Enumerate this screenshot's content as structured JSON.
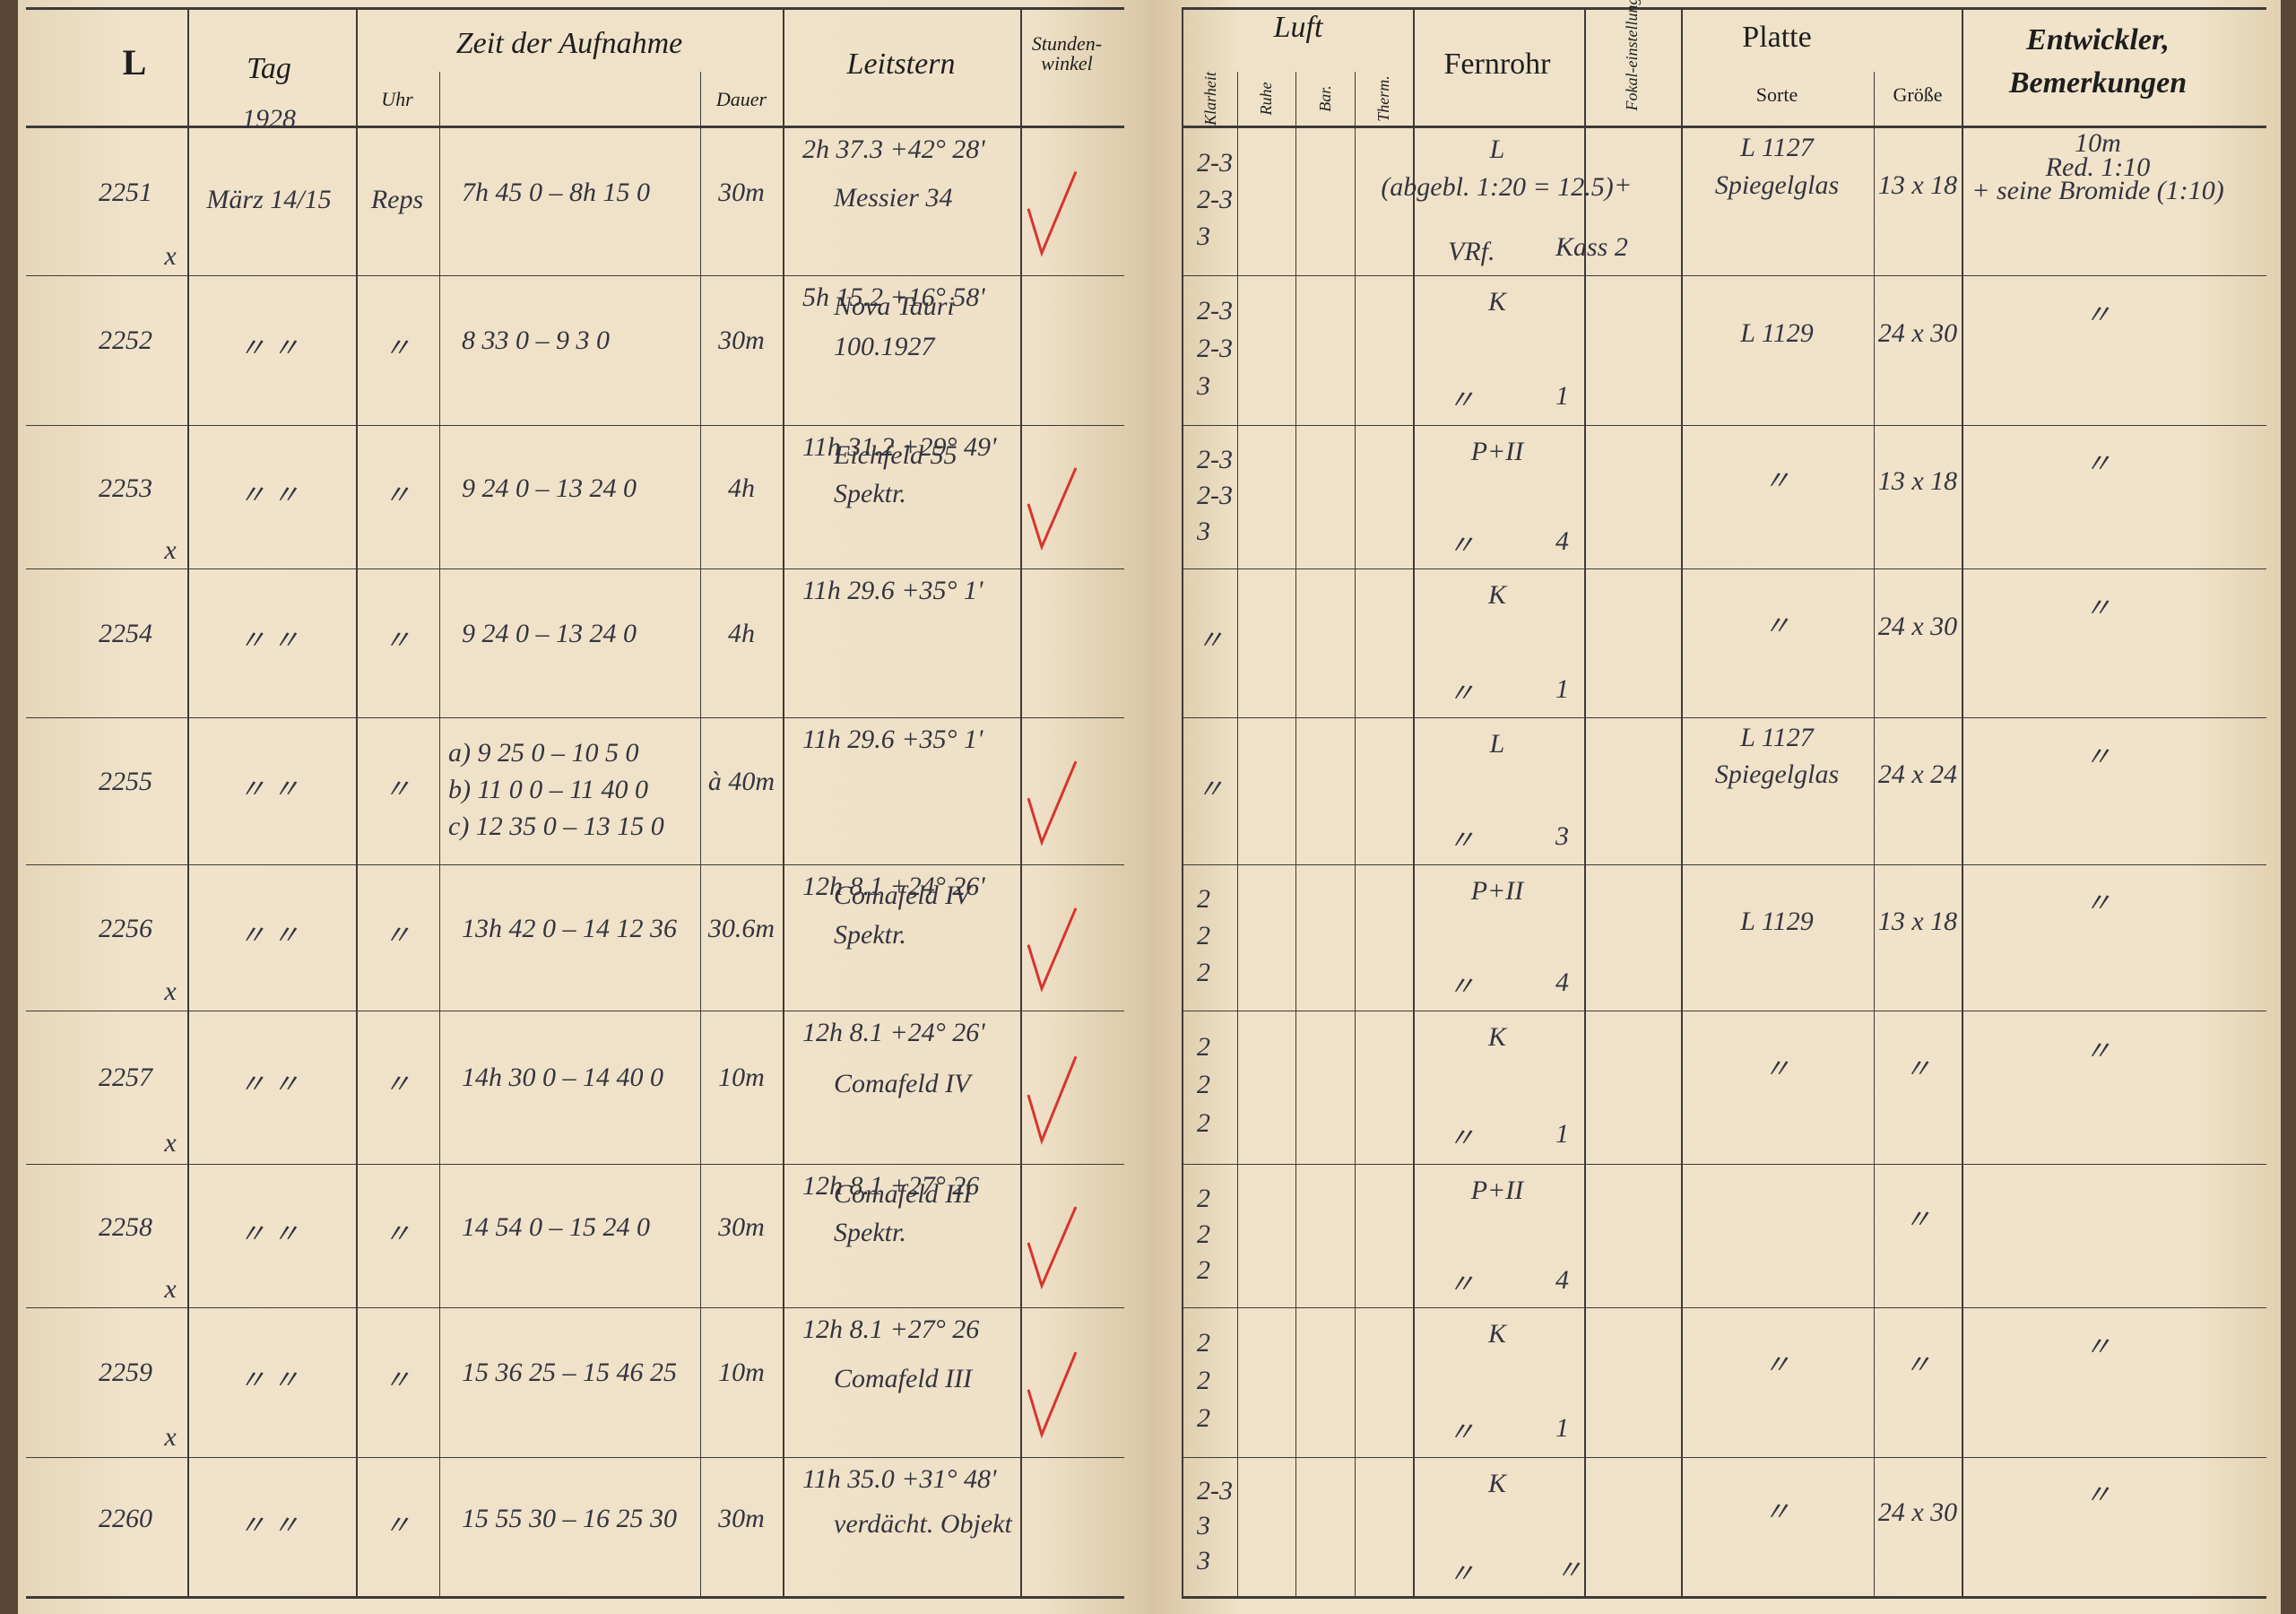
{
  "left_page": {
    "headers": {
      "l": "L",
      "tag": "Tag",
      "year": "1928",
      "zeit": "Zeit der Aufnahme",
      "uhr": "Uhr",
      "dauer": "Dauer",
      "leitstern": "Leitstern",
      "stundenwinkel": "Stunden-winkel"
    },
    "rows": [
      {
        "l": "2251",
        "cross": "x",
        "tag": "März 14/15",
        "uhr": "Reps",
        "zeit": "7h 45 0 – 8h 15 0",
        "dauer": "30m",
        "coords": "2h 37.3   +42° 28'",
        "name": [
          "Messier 34"
        ],
        "check": true
      },
      {
        "l": "2252",
        "tag": "〃  〃",
        "uhr": "〃",
        "zeit": "8 33 0 – 9 3 0",
        "dauer": "30m",
        "coords": "5h 15.2   +16° 58'",
        "name": [
          "Nova Tauri",
          "100.1927"
        ]
      },
      {
        "l": "2253",
        "cross": "x",
        "tag": "〃  〃",
        "uhr": "〃",
        "zeit": "9 24 0 – 13 24 0",
        "dauer": "4h",
        "coords": "11h 31.2   +29° 49'",
        "name": [
          "Eichfeld 55",
          "Spektr."
        ],
        "check": true
      },
      {
        "l": "2254",
        "tag": "〃  〃",
        "uhr": "〃",
        "zeit": "9 24 0 – 13 24 0",
        "dauer": "4h",
        "coords": "11h 29.6   +35° 1'"
      },
      {
        "l": "2255",
        "tag": "〃  〃",
        "uhr": "〃",
        "zeit": [
          "a) 9 25 0 – 10 5 0",
          "b) 11 0 0 – 11 40 0",
          "c) 12 35 0 – 13 15 0"
        ],
        "dauer": "à 40m",
        "coords": "11h 29.6   +35° 1'",
        "check": true
      },
      {
        "l": "2256",
        "cross": "x",
        "tag": "〃  〃",
        "uhr": "〃",
        "zeit": "13h 42 0 – 14 12 36",
        "dauer": "30.6m",
        "coords": "12h 8.1   +24° 26'",
        "name": [
          "Comafeld IV",
          "Spektr."
        ],
        "check": true
      },
      {
        "l": "2257",
        "cross": "x",
        "tag": "〃  〃",
        "uhr": "〃",
        "zeit": "14h 30 0 – 14 40 0",
        "dauer": "10m",
        "coords": "12h 8.1   +24° 26'",
        "name": [
          "Comafeld IV"
        ],
        "check": true
      },
      {
        "l": "2258",
        "cross": "x",
        "tag": "〃  〃",
        "uhr": "〃",
        "zeit": "14 54 0 – 15 24 0",
        "dauer": "30m",
        "coords": "12h 8.1   +27° 26",
        "name": [
          "Comafeld III",
          "Spektr."
        ],
        "check": true
      },
      {
        "l": "2259",
        "cross": "x",
        "tag": "〃  〃",
        "uhr": "〃",
        "zeit": "15 36 25 – 15 46 25",
        "dauer": "10m",
        "coords": "12h 8.1   +27° 26",
        "name": [
          "Comafeld III"
        ],
        "check": true
      },
      {
        "l": "2260",
        "tag": "〃  〃",
        "uhr": "〃",
        "zeit": "15 55 30 – 16 25 30",
        "dauer": "30m",
        "coords": "11h 35.0   +31° 48'",
        "name": [
          "verdächt. Objekt"
        ]
      }
    ]
  },
  "right_page": {
    "headers": {
      "luft": "Luft",
      "klarheit": "Klarheit",
      "ruhe": "Ruhe",
      "bar": "Bar.",
      "therm": "Therm.",
      "fernrohr": "Fernrohr",
      "fokal": "Fokal-einstellung",
      "platte": "Platte",
      "sorte": "Sorte",
      "groesse": "Größe",
      "entwickler": "Entwickler,",
      "bemerkungen": "Bemerkungen"
    },
    "rows": [
      {
        "klarheit": [
          "2-3",
          "2-3",
          "3"
        ],
        "fernrohr": [
          "L",
          "(abgebl. 1:20 = 12.5)"
        ],
        "fern_left": "VRf.",
        "fern_right": "Kass 2",
        "fokal": "+",
        "sorte": [
          "L 1127",
          "Spiegelglas"
        ],
        "groesse": "13 x 18",
        "bem": [
          "10m",
          "Red. 1:10",
          "+ seine Bromide (1:10)"
        ]
      },
      {
        "klarheit": [
          "2-3",
          "2-3",
          "3"
        ],
        "fernrohr": [
          "K"
        ],
        "fern_left": "〃",
        "fern_right": "1",
        "sorte": [
          "L 1129"
        ],
        "groesse": "24 x 30",
        "bem": [
          "〃"
        ]
      },
      {
        "klarheit": [
          "2-3",
          "2-3",
          "3"
        ],
        "fernrohr": [
          "P+II"
        ],
        "fern_left": "〃",
        "fern_right": "4",
        "sorte": [
          "〃"
        ],
        "groesse": "13 x 18",
        "bem": [
          "〃"
        ]
      },
      {
        "klarheit": [
          "〃"
        ],
        "fernrohr": [
          "K"
        ],
        "fern_left": "〃",
        "fern_right": "1",
        "sorte": [
          "〃"
        ],
        "groesse": "24 x 30",
        "bem": [
          "〃"
        ]
      },
      {
        "klarheit": [
          "〃"
        ],
        "fernrohr": [
          "L"
        ],
        "fern_left": "〃",
        "fern_right": "3",
        "sorte": [
          "L 1127",
          "Spiegelglas"
        ],
        "groesse": "24 x 24",
        "bem": [
          "〃"
        ]
      },
      {
        "klarheit": [
          "2",
          "2",
          "2"
        ],
        "fernrohr": [
          "P+II"
        ],
        "fern_left": "〃",
        "fern_right": "4",
        "sorte": [
          "L 1129"
        ],
        "groesse": "13 x 18",
        "bem": [
          "〃"
        ]
      },
      {
        "klarheit": [
          "2",
          "2",
          "2"
        ],
        "fernrohr": [
          "K"
        ],
        "fern_left": "〃",
        "fern_right": "1",
        "sorte": [
          "〃"
        ],
        "groesse": "〃",
        "bem": [
          "〃"
        ]
      },
      {
        "klarheit": [
          "2",
          "2",
          "2"
        ],
        "fernrohr": [
          "P+II"
        ],
        "fern_left": "〃",
        "fern_right": "4",
        "groesse": "〃"
      },
      {
        "klarheit": [
          "2",
          "2",
          "2"
        ],
        "fernrohr": [
          "K"
        ],
        "fern_left": "〃",
        "fern_right": "1",
        "sorte": [
          "〃"
        ],
        "groesse": "〃",
        "bem": [
          "〃"
        ]
      },
      {
        "klarheit": [
          "2-3",
          "3",
          "3"
        ],
        "fernrohr": [
          "K"
        ],
        "fern_left": "〃",
        "fern_right": "〃",
        "sorte": [
          "〃"
        ],
        "groesse": "24 x 30",
        "bem": [
          "〃"
        ]
      }
    ]
  }
}
